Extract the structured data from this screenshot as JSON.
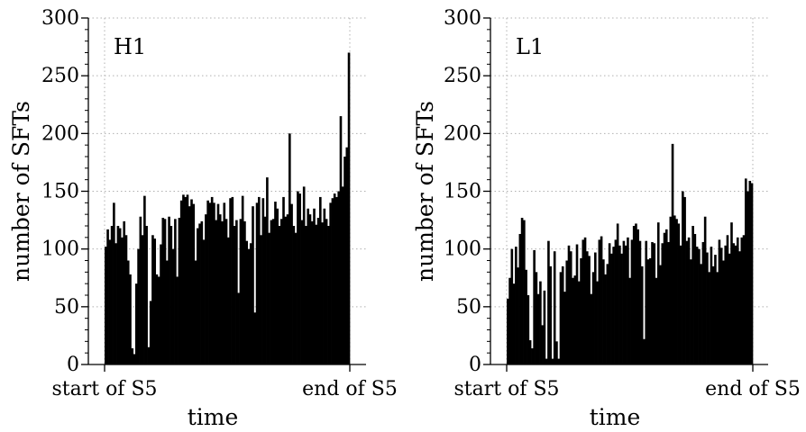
{
  "chart_data": [
    {
      "type": "bar",
      "panel_label": "H1",
      "xlabel": "time",
      "ylabel": "number of SFTs",
      "ylim": [
        0,
        300
      ],
      "yticks": [
        0,
        50,
        100,
        150,
        200,
        250,
        300
      ],
      "x_tick_labels": [
        "start of S5",
        "end of S5"
      ],
      "grid": true,
      "values": [
        102,
        117,
        108,
        120,
        140,
        105,
        120,
        118,
        110,
        124,
        112,
        90,
        78,
        14,
        9,
        70,
        100,
        128,
        112,
        146,
        120,
        15,
        55,
        112,
        109,
        78,
        76,
        104,
        127,
        126,
        90,
        128,
        120,
        100,
        126,
        76,
        127,
        142,
        147,
        145,
        147,
        137,
        143,
        139,
        90,
        118,
        122,
        124,
        108,
        130,
        142,
        140,
        145,
        140,
        125,
        139,
        130,
        124,
        140,
        126,
        110,
        144,
        145,
        120,
        125,
        62,
        126,
        146,
        124,
        107,
        100,
        105,
        137,
        45,
        140,
        145,
        112,
        144,
        128,
        162,
        114,
        125,
        126,
        141,
        135,
        120,
        126,
        145,
        128,
        130,
        200,
        139,
        120,
        114,
        150,
        148,
        125,
        154,
        120,
        135,
        130,
        124,
        135,
        121,
        127,
        145,
        123,
        135,
        126,
        120,
        140,
        144,
        148,
        145,
        150,
        215,
        154,
        180,
        188,
        270
      ],
      "color": "#000000",
      "grid_color": "#b0b0b0"
    },
    {
      "type": "bar",
      "panel_label": "L1",
      "xlabel": "time",
      "ylabel": "number of SFTs",
      "ylim": [
        0,
        300
      ],
      "yticks": [
        0,
        50,
        100,
        150,
        200,
        250,
        300
      ],
      "x_tick_labels": [
        "start of S5",
        "end of S5"
      ],
      "grid": true,
      "values": [
        57,
        75,
        100,
        70,
        102,
        84,
        113,
        127,
        125,
        82,
        60,
        21,
        14,
        99,
        80,
        61,
        72,
        34,
        64,
        5,
        107,
        85,
        5,
        98,
        20,
        5,
        80,
        85,
        63,
        90,
        103,
        98,
        75,
        77,
        104,
        72,
        92,
        108,
        110,
        98,
        94,
        61,
        80,
        97,
        72,
        108,
        111,
        91,
        78,
        87,
        105,
        96,
        102,
        108,
        122,
        103,
        96,
        107,
        103,
        110,
        75,
        108,
        120,
        122,
        117,
        107,
        85,
        22,
        107,
        91,
        92,
        106,
        105,
        75,
        123,
        86,
        105,
        114,
        117,
        106,
        128,
        191,
        129,
        126,
        122,
        103,
        150,
        145,
        107,
        110,
        91,
        120,
        113,
        102,
        100,
        87,
        106,
        128,
        97,
        80,
        102,
        85,
        95,
        80,
        108,
        101,
        90,
        103,
        112,
        96,
        123,
        105,
        103,
        110,
        98,
        110,
        112,
        161,
        150,
        159,
        157
      ],
      "color": "#000000",
      "grid_color": "#b0b0b0"
    }
  ]
}
